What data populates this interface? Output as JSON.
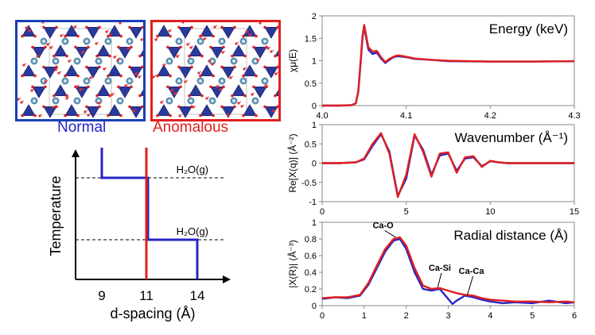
{
  "colors": {
    "normal": "#2525c8",
    "anomalous": "#e01f1f",
    "box_normal": "#1a3fb5",
    "box_anomalous": "#e01f1f"
  },
  "crystal_panels": [
    {
      "name": "normal-structure",
      "frame_color": "#1a3fb5"
    },
    {
      "name": "anomalous-structure",
      "frame_color": "#e01f1f"
    }
  ],
  "legend": {
    "normal": "Normal",
    "anomalous": "Anomalous"
  },
  "chart_data": [
    {
      "type": "line",
      "panel": "d-spacing vs temperature",
      "xlabel": "d-spacing (Å)",
      "ylabel": "Temperature",
      "xticks": [
        "9",
        "11",
        "14"
      ],
      "annotations": [
        "H₂O(g)",
        "H₂O(g)"
      ],
      "series": [
        {
          "name": "Normal",
          "color": "#2525c8",
          "steps_d_spacing": [
            9,
            11,
            14
          ]
        },
        {
          "name": "Anomalous",
          "color": "#e01f1f",
          "steps_d_spacing": [
            11
          ]
        }
      ]
    },
    {
      "type": "line",
      "title": "Energy (keV)",
      "ylabel": "χμ(E)",
      "xlim": [
        4.0,
        4.3
      ],
      "ylim": [
        0,
        2
      ],
      "xticks": [
        "4.0",
        "4.1",
        "4.2",
        "4.3"
      ],
      "yticks": [
        "0",
        "0.5",
        "1",
        "1.5",
        "2"
      ],
      "series": [
        {
          "color": "#2525c8",
          "x": [
            4.0,
            4.02,
            4.035,
            4.04,
            4.043,
            4.046,
            4.048,
            4.05,
            4.052,
            4.055,
            4.06,
            4.065,
            4.07,
            4.075,
            4.08,
            4.085,
            4.09,
            4.1,
            4.11,
            4.13,
            4.15,
            4.2,
            4.25,
            4.3
          ],
          "y": [
            0.0,
            0.0,
            0.01,
            0.05,
            0.3,
            1.0,
            1.5,
            1.78,
            1.55,
            1.25,
            1.15,
            1.18,
            1.05,
            0.95,
            1.02,
            1.08,
            1.1,
            1.08,
            1.04,
            1.02,
            0.99,
            0.98,
            0.98,
            0.99
          ]
        },
        {
          "color": "#e01f1f",
          "x": [
            4.0,
            4.02,
            4.035,
            4.04,
            4.043,
            4.046,
            4.048,
            4.05,
            4.052,
            4.055,
            4.06,
            4.065,
            4.07,
            4.075,
            4.08,
            4.085,
            4.09,
            4.1,
            4.11,
            4.13,
            4.15,
            4.2,
            4.25,
            4.3
          ],
          "y": [
            0.0,
            0.0,
            0.01,
            0.05,
            0.32,
            1.05,
            1.55,
            1.8,
            1.6,
            1.3,
            1.2,
            1.22,
            1.08,
            0.97,
            1.04,
            1.09,
            1.12,
            1.09,
            1.05,
            1.02,
            1.0,
            0.98,
            0.98,
            0.99
          ]
        }
      ]
    },
    {
      "type": "line",
      "title": "Wavenumber (Å⁻¹)",
      "ylabel": "Re[X(q)] (Å⁻²)",
      "xlim": [
        0,
        15
      ],
      "ylim": [
        -1,
        1
      ],
      "xticks": [
        "0",
        "5",
        "10",
        "15"
      ],
      "yticks": [
        "-1",
        "-0.5",
        "0",
        "0.5",
        "1"
      ],
      "series": [
        {
          "color": "#2525c8",
          "x": [
            0,
            1,
            2,
            2.5,
            3,
            3.5,
            4,
            4.5,
            5,
            5.5,
            6,
            6.5,
            7,
            7.5,
            8,
            8.5,
            9,
            9.5,
            10,
            10.5,
            11,
            12,
            13,
            14,
            15
          ],
          "y": [
            0,
            0,
            0.02,
            0.1,
            0.45,
            0.75,
            0.3,
            -0.85,
            -0.4,
            0.72,
            0.35,
            -0.3,
            0.2,
            0.25,
            -0.2,
            0.12,
            0.15,
            -0.08,
            0.05,
            0.02,
            0,
            0,
            0,
            0,
            0
          ]
        },
        {
          "color": "#e01f1f",
          "x": [
            0,
            1,
            2,
            2.5,
            3,
            3.5,
            4,
            4.5,
            5,
            5.5,
            6,
            6.5,
            7,
            7.5,
            8,
            8.5,
            9,
            9.5,
            10,
            10.5,
            11,
            12,
            13,
            14,
            15
          ],
          "y": [
            0,
            0,
            0.02,
            0.12,
            0.5,
            0.78,
            0.25,
            -0.88,
            -0.3,
            0.75,
            0.3,
            -0.35,
            0.25,
            0.28,
            -0.25,
            0.15,
            0.18,
            -0.1,
            0.06,
            0.02,
            0,
            0,
            0,
            0,
            0
          ]
        }
      ]
    },
    {
      "type": "line",
      "title": "Radial distance (Å)",
      "ylabel": "|X(R)| (Å⁻³)",
      "xlim": [
        0,
        6
      ],
      "ylim": [
        0,
        1
      ],
      "xticks": [
        "0",
        "1",
        "2",
        "3",
        "4",
        "5",
        "6"
      ],
      "yticks": [
        "0",
        "0.2",
        "0.4",
        "0.6",
        "0.8",
        "1"
      ],
      "annotations": [
        "Ca-O",
        "Ca-Si",
        "Ca-Ca"
      ],
      "series": [
        {
          "color": "#2525c8",
          "x": [
            0,
            0.3,
            0.6,
            0.9,
            1.1,
            1.3,
            1.5,
            1.7,
            1.85,
            2.0,
            2.2,
            2.4,
            2.6,
            2.8,
            3.0,
            3.1,
            3.2,
            3.4,
            3.6,
            3.8,
            4.0,
            4.3,
            4.6,
            5.0,
            5.4,
            5.8,
            6.0
          ],
          "y": [
            0.08,
            0.1,
            0.09,
            0.12,
            0.25,
            0.45,
            0.65,
            0.78,
            0.8,
            0.68,
            0.4,
            0.2,
            0.18,
            0.2,
            0.08,
            0.02,
            0.06,
            0.12,
            0.1,
            0.07,
            0.05,
            0.03,
            0.04,
            0.03,
            0.06,
            0.03,
            0.04
          ]
        },
        {
          "color": "#e01f1f",
          "x": [
            0,
            0.3,
            0.6,
            0.9,
            1.1,
            1.3,
            1.5,
            1.7,
            1.85,
            2.0,
            2.2,
            2.4,
            2.6,
            2.8,
            3.0,
            3.2,
            3.4,
            3.6,
            3.8,
            4.0,
            4.3,
            4.6,
            5.0,
            5.4,
            5.8,
            6.0
          ],
          "y": [
            0.09,
            0.1,
            0.1,
            0.13,
            0.27,
            0.48,
            0.68,
            0.8,
            0.82,
            0.72,
            0.45,
            0.24,
            0.2,
            0.21,
            0.18,
            0.15,
            0.13,
            0.12,
            0.09,
            0.07,
            0.06,
            0.05,
            0.05,
            0.04,
            0.05,
            0.04
          ]
        }
      ]
    }
  ]
}
